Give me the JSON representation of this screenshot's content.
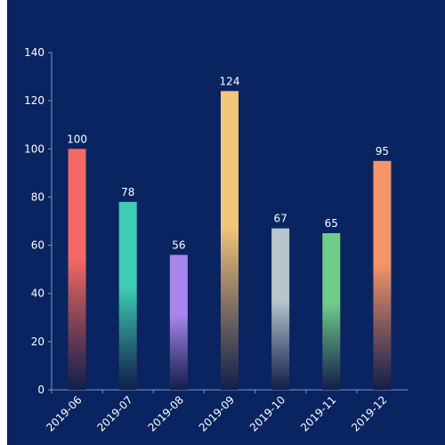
{
  "chart_data": {
    "type": "bar",
    "categories": [
      "2019-06",
      "2019-07",
      "2019-08",
      "2019-09",
      "2019-10",
      "2019-11",
      "2019-12"
    ],
    "values": [
      100,
      78,
      56,
      124,
      67,
      65,
      95
    ],
    "bar_colors": [
      "#f46a63",
      "#3dcfb4",
      "#a885ec",
      "#f4c67a",
      "#b6c6cb",
      "#6fcd8a",
      "#f4956a"
    ],
    "y_ticks": [
      0,
      20,
      40,
      60,
      80,
      100,
      120,
      140
    ],
    "ylim": [
      0,
      140
    ],
    "title": "",
    "xlabel": "",
    "ylabel": "",
    "grid": false,
    "show_data_labels": true
  },
  "colors": {
    "background": "#0a2461",
    "axis": "#8496c4",
    "text": "#ffffff"
  }
}
